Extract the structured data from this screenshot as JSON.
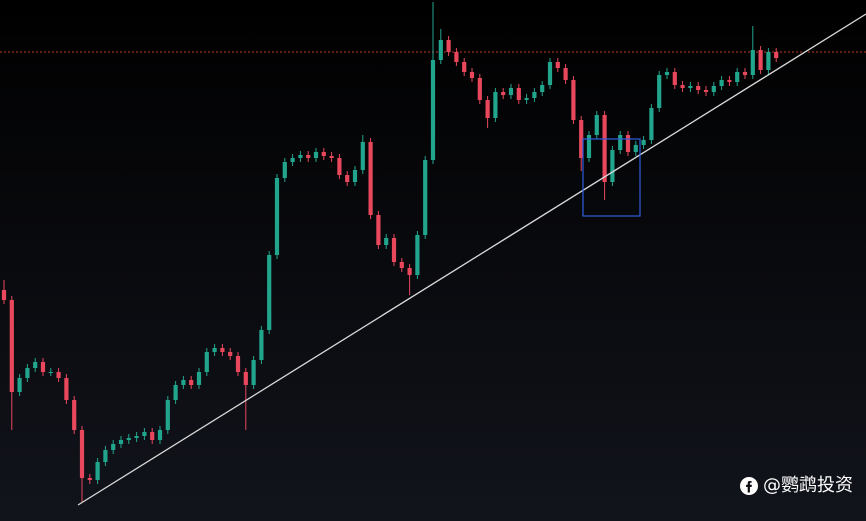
{
  "chart_data": {
    "type": "candlestick",
    "up_color": "#22a58d",
    "down_color": "#e8475c",
    "open": [
      231,
      221,
      129,
      143,
      153,
      159,
      149,
      149,
      143,
      121,
      91,
      43,
      41,
      59,
      71,
      77,
      81,
      83,
      85,
      89,
      81,
      91,
      121,
      136,
      141,
      136,
      149,
      169,
      173,
      169,
      165,
      149,
      136,
      161,
      191,
      266,
      343,
      359,
      363,
      366,
      363,
      369,
      365,
      363,
      346,
      339,
      351,
      379,
      306,
      276,
      283,
      259,
      253,
      246,
      286,
      361,
      461,
      481,
      469,
      459,
      449,
      443,
      421,
      403,
      429,
      426,
      433,
      421,
      423,
      429,
      436,
      459,
      453,
      441,
      401,
      363,
      386,
      406,
      339,
      371,
      386,
      369,
      376,
      381,
      413,
      446,
      449,
      436,
      433,
      435,
      431,
      429,
      435,
      441,
      439,
      449,
      446,
      471,
      451,
      469
    ],
    "high": [
      241,
      225,
      147,
      157,
      163,
      163,
      153,
      153,
      147,
      125,
      95,
      47,
      63,
      75,
      81,
      85,
      87,
      89,
      93,
      93,
      95,
      125,
      140,
      145,
      145,
      153,
      173,
      177,
      177,
      173,
      169,
      153,
      165,
      195,
      270,
      347,
      363,
      367,
      370,
      370,
      373,
      373,
      369,
      367,
      350,
      355,
      386,
      383,
      310,
      287,
      287,
      263,
      257,
      290,
      365,
      519,
      492,
      485,
      473,
      463,
      453,
      447,
      425,
      433,
      433,
      437,
      437,
      427,
      433,
      440,
      463,
      463,
      457,
      445,
      405,
      390,
      410,
      410,
      375,
      390,
      390,
      380,
      385,
      417,
      450,
      453,
      453,
      440,
      439,
      439,
      435,
      439,
      445,
      445,
      453,
      453,
      495,
      475,
      473,
      473
    ],
    "low": [
      217,
      91,
      125,
      139,
      149,
      145,
      145,
      139,
      117,
      87,
      18,
      37,
      37,
      55,
      67,
      73,
      77,
      79,
      81,
      77,
      77,
      87,
      117,
      132,
      132,
      132,
      145,
      165,
      165,
      161,
      145,
      91,
      132,
      157,
      187,
      262,
      339,
      355,
      359,
      359,
      359,
      361,
      359,
      342,
      335,
      335,
      347,
      302,
      272,
      272,
      255,
      249,
      226,
      242,
      282,
      357,
      457,
      465,
      455,
      445,
      439,
      417,
      393,
      399,
      422,
      422,
      417,
      417,
      419,
      425,
      432,
      449,
      437,
      397,
      350,
      359,
      382,
      321,
      335,
      367,
      365,
      365,
      372,
      377,
      409,
      442,
      432,
      429,
      429,
      427,
      425,
      425,
      431,
      435,
      435,
      442,
      442,
      447,
      447,
      459
    ],
    "close": [
      221,
      129,
      143,
      153,
      159,
      149,
      149,
      143,
      121,
      91,
      43,
      41,
      59,
      71,
      77,
      81,
      83,
      85,
      89,
      81,
      91,
      121,
      136,
      141,
      136,
      149,
      169,
      173,
      169,
      165,
      149,
      136,
      161,
      191,
      266,
      343,
      359,
      363,
      366,
      363,
      369,
      365,
      363,
      346,
      339,
      351,
      379,
      306,
      276,
      283,
      259,
      253,
      246,
      286,
      361,
      461,
      481,
      469,
      459,
      449,
      443,
      421,
      403,
      429,
      426,
      433,
      421,
      423,
      429,
      436,
      459,
      453,
      441,
      401,
      363,
      386,
      406,
      339,
      371,
      386,
      369,
      376,
      381,
      413,
      446,
      449,
      436,
      433,
      435,
      431,
      429,
      435,
      441,
      439,
      449,
      446,
      471,
      451,
      469,
      463
    ],
    "watermark": "@鹦鹉投资"
  }
}
